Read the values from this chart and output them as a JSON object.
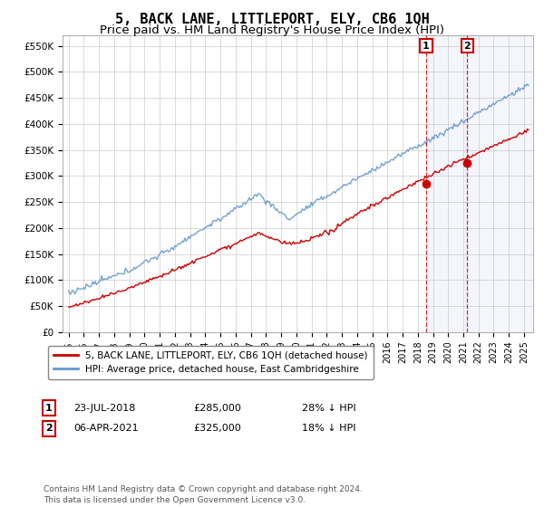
{
  "title": "5, BACK LANE, LITTLEPORT, ELY, CB6 1QH",
  "subtitle": "Price paid vs. HM Land Registry's House Price Index (HPI)",
  "ylabel_ticks": [
    "£0",
    "£50K",
    "£100K",
    "£150K",
    "£200K",
    "£250K",
    "£300K",
    "£350K",
    "£400K",
    "£450K",
    "£500K",
    "£550K"
  ],
  "ylim": [
    0,
    570000
  ],
  "ytick_vals": [
    0,
    50000,
    100000,
    150000,
    200000,
    250000,
    300000,
    350000,
    400000,
    450000,
    500000,
    550000
  ],
  "legend_line1": "5, BACK LANE, LITTLEPORT, ELY, CB6 1QH (detached house)",
  "legend_line2": "HPI: Average price, detached house, East Cambridgeshire",
  "legend_color1": "#cc0000",
  "legend_color2": "#6699cc",
  "annotation1": {
    "label": "1",
    "date": "23-JUL-2018",
    "price": "£285,000",
    "note": "28% ↓ HPI"
  },
  "annotation2": {
    "label": "2",
    "date": "06-APR-2021",
    "price": "£325,000",
    "note": "18% ↓ HPI"
  },
  "footer": "Contains HM Land Registry data © Crown copyright and database right 2024.\nThis data is licensed under the Open Government Licence v3.0.",
  "background_color": "#ffffff",
  "plot_bg_color": "#ffffff",
  "grid_color": "#cccccc",
  "title_fontsize": 11,
  "subtitle_fontsize": 9.5,
  "sale1_year": 2018.55,
  "sale1_price": 285000,
  "sale2_year": 2021.26,
  "sale2_price": 325000
}
